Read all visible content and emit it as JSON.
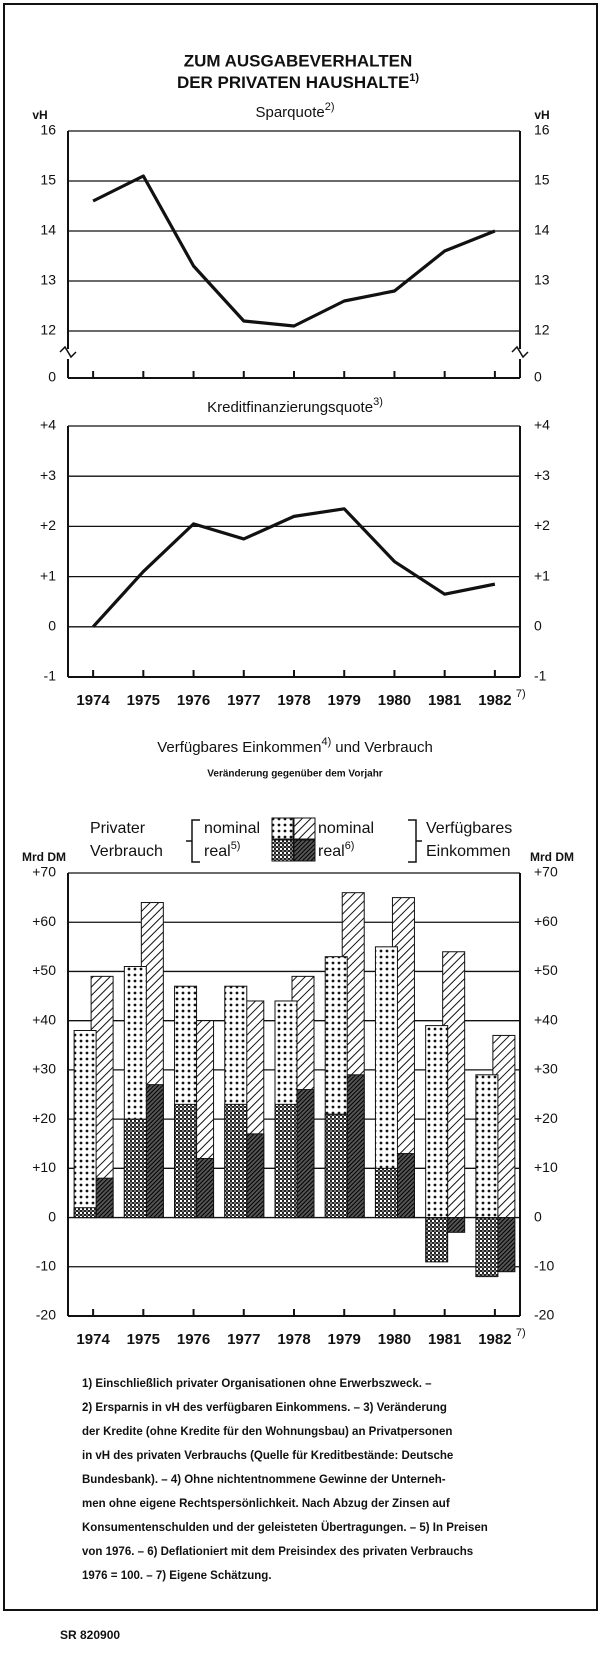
{
  "title": [
    "ZUM AUSGABEVERHALTEN",
    "DER PRIVATEN HAUSHALTE"
  ],
  "title_note": "1)",
  "chart_data": [
    {
      "type": "line",
      "title": "Sparquote",
      "title_note": "2)",
      "ylabel": "vH",
      "y2label": "vH",
      "categories": [
        null,
        null,
        null,
        null,
        null,
        null,
        null,
        null,
        null
      ],
      "values": [
        14.6,
        15.1,
        13.3,
        12.2,
        12.1,
        12.6,
        12.8,
        13.6,
        14.0
      ],
      "color": "#111111",
      "ylim": [
        0,
        16
      ],
      "yticks": [
        0,
        12,
        13,
        14,
        15,
        16
      ],
      "broken_axis": true,
      "grid": true
    },
    {
      "type": "line",
      "title": "Kreditfinanzierungsquote",
      "title_note": "3)",
      "categories": [
        "1974",
        "1975",
        "1976",
        "1977",
        "1978",
        "1979",
        "1980",
        "1981",
        "1982"
      ],
      "category_note": "7)",
      "values": [
        0,
        1.1,
        2.05,
        1.75,
        2.2,
        2.35,
        1.3,
        0.65,
        0.85
      ],
      "color": "#111111",
      "ylim": [
        -1,
        4
      ],
      "yticks": [
        -1,
        0,
        {
          "value": 1,
          "label": "+1"
        },
        {
          "value": 2,
          "label": "+2"
        },
        {
          "value": 3,
          "label": "+3"
        },
        {
          "value": 4,
          "label": "+4"
        }
      ],
      "grid": true
    },
    {
      "type": "bar",
      "title": "Verfügbares Einkommen",
      "title_note": "4)",
      "title_tail": "und Verbrauch",
      "subtitle": "Veränderung gegenüber dem Vorjahr",
      "ylabel": "Mrd DM",
      "y2label": "Mrd DM",
      "legend_groups": [
        [
          "Privater",
          "Verbrauch"
        ],
        [
          "Verfügbares",
          "Einkommen"
        ]
      ],
      "categories": [
        "1974",
        "1975",
        "1976",
        "1977",
        "1978",
        "1979",
        "1980",
        "1981",
        "1982"
      ],
      "category_note": "7)",
      "series": [
        {
          "name": "nominal",
          "group": 0,
          "pattern": "dots",
          "color": "#111111",
          "values": [
            38,
            51,
            47,
            47,
            44,
            53,
            55,
            39,
            29
          ]
        },
        {
          "name": "real",
          "note": "5)",
          "group": 0,
          "pattern": "checker",
          "color": "#111111",
          "values": [
            2,
            20,
            23,
            23,
            23,
            21,
            10,
            -9,
            -12
          ]
        },
        {
          "name": "nominal",
          "group": 1,
          "pattern": "hatch",
          "color": "#111111",
          "values": [
            49,
            64,
            40,
            44,
            49,
            66,
            65,
            54,
            37
          ]
        },
        {
          "name": "real",
          "note": "6)",
          "group": 1,
          "pattern": "densehatch",
          "color": "#111111",
          "values": [
            8,
            27,
            12,
            17,
            26,
            29,
            13,
            -3,
            -11
          ]
        }
      ],
      "ylim": [
        -20,
        70
      ],
      "yticks": [
        -20,
        -10,
        0,
        {
          "value": 10,
          "label": "+10"
        },
        {
          "value": 20,
          "label": "+20"
        },
        {
          "value": 30,
          "label": "+30"
        },
        {
          "value": 40,
          "label": "+40"
        },
        {
          "value": 50,
          "label": "+50"
        },
        {
          "value": 60,
          "label": "+60"
        },
        {
          "value": 70,
          "label": "+70"
        }
      ],
      "grid": true
    }
  ],
  "footnotes": [
    "1) Einschließlich privater Organisationen ohne Erwerbszweck. –",
    "2) Ersparnis in vH des verfügbaren Einkommens. – 3) Veränderung",
    "der Kredite (ohne Kredite für den Wohnungsbau) an Privatpersonen",
    "in vH des privaten Verbrauchs (Quelle für Kreditbestände: Deutsche",
    "Bundesbank). – 4) Ohne nichtentnommene Gewinne der Unterneh-",
    "men ohne eigene Rechtspersönlichkeit. Nach Abzug der Zinsen auf",
    "Konsumentenschulden und der geleisteten Übertragungen. – 5) In Preisen",
    "von 1976. – 6) Deflationiert mit dem Preisindex des privaten Verbrauchs",
    "1976 = 100. – 7) Eigene Schätzung."
  ],
  "source": "SR 820900"
}
